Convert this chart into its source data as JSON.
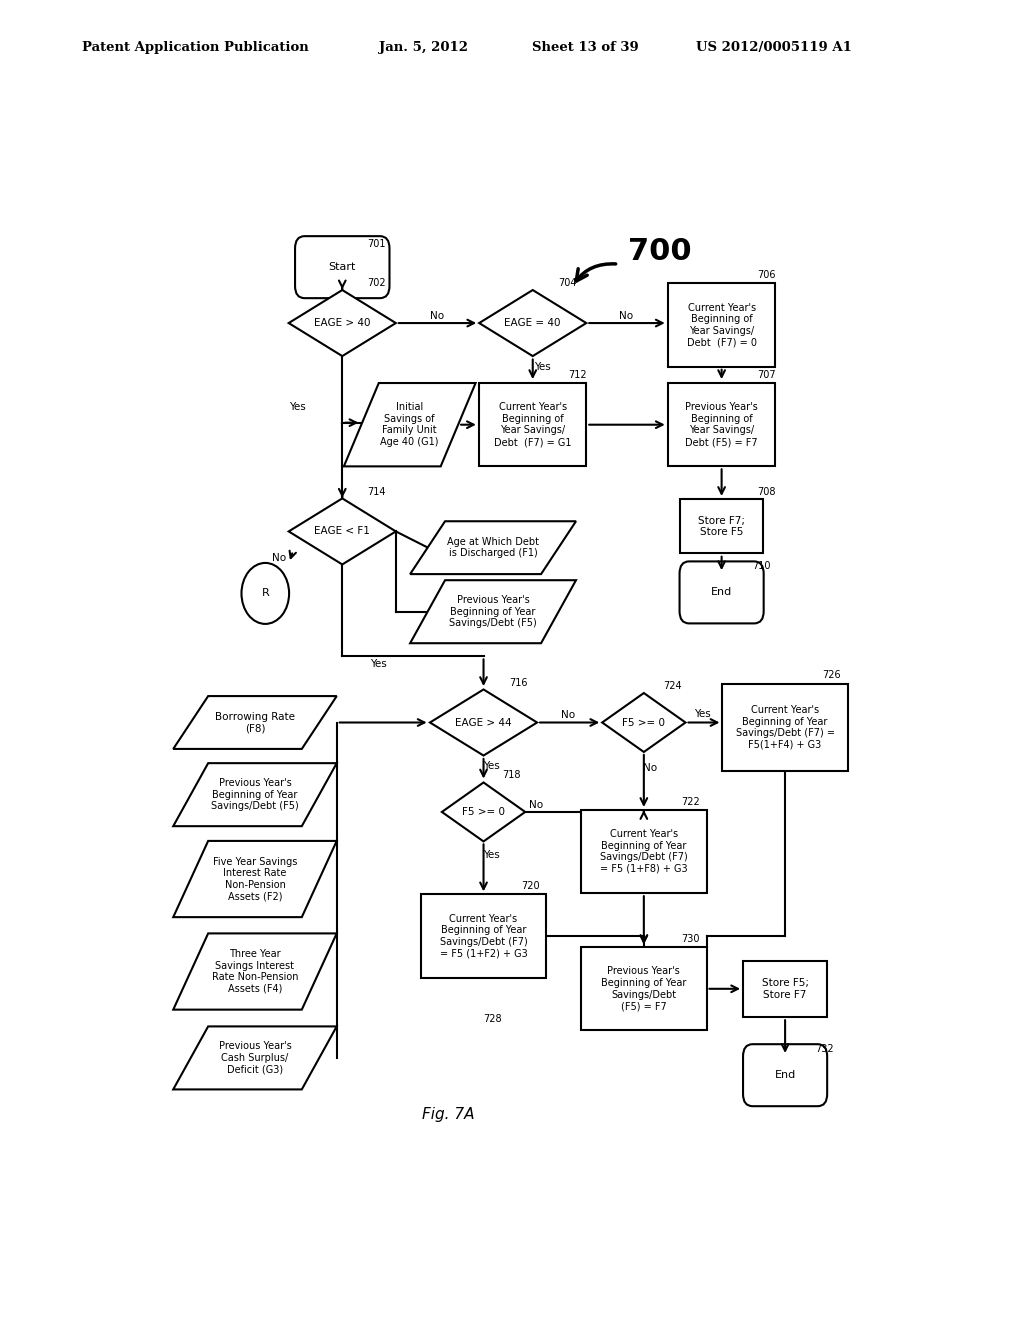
{
  "header_left": "Patent Application Publication",
  "header_mid1": "Jan. 5, 2012",
  "header_mid2": "Sheet 13 of 39",
  "header_right": "US 2012/0005119 A1",
  "fig_label": "Fig. 7A",
  "diagram_num": "700",
  "bg_color": "#ffffff"
}
